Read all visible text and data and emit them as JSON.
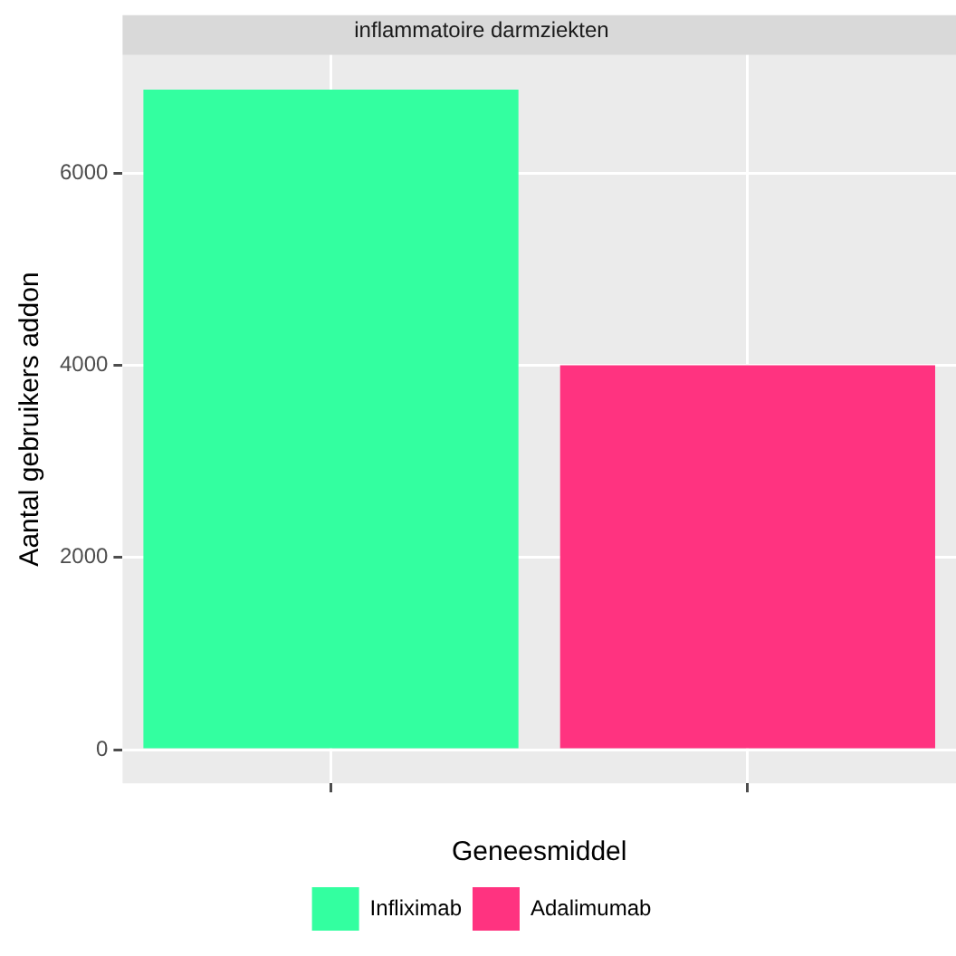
{
  "chart_data": {
    "type": "bar",
    "title": "inflammatoire darmziekten",
    "xlabel": "Geneesmiddel",
    "ylabel": "Aantal gebruikers addon",
    "categories": [
      null,
      null
    ],
    "series": [
      {
        "name": "Infliximab",
        "color": "#33ffa0",
        "values": [
          6870,
          null
        ]
      },
      {
        "name": "Adalimumab",
        "color": "#ff3380",
        "values": [
          null,
          4000
        ]
      }
    ],
    "ylim": [
      -350,
      7230
    ],
    "yticks": [
      0,
      2000,
      4000,
      6000
    ],
    "grid": true,
    "legend": "bottom"
  }
}
